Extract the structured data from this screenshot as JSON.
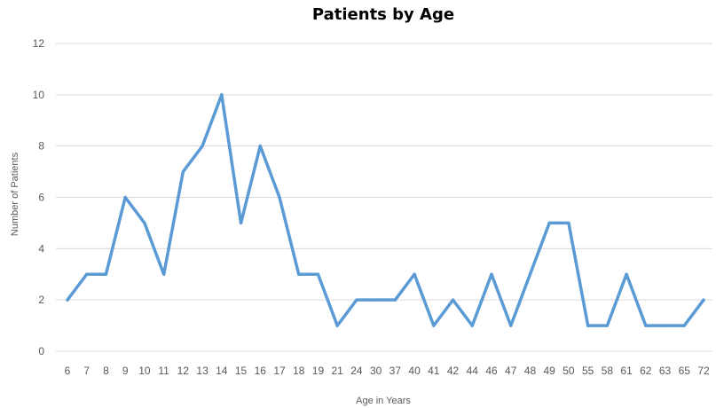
{
  "chart_data": {
    "type": "line",
    "title": "Patients by Age",
    "xlabel": "Age in Years",
    "ylabel": "Number of Patients",
    "categories": [
      "6",
      "7",
      "8",
      "9",
      "10",
      "11",
      "12",
      "13",
      "14",
      "15",
      "16",
      "17",
      "18",
      "19",
      "21",
      "24",
      "30",
      "37",
      "40",
      "41",
      "42",
      "44",
      "46",
      "47",
      "48",
      "49",
      "50",
      "55",
      "58",
      "61",
      "62",
      "63",
      "65",
      "72"
    ],
    "series": [
      {
        "values": [
          2,
          3,
          3,
          6,
          5,
          3,
          7,
          8,
          10,
          5,
          8,
          6,
          3,
          3,
          1,
          2,
          2,
          2,
          3,
          1,
          2,
          1,
          3,
          1,
          3,
          5,
          5,
          1,
          1,
          3,
          1,
          1,
          1,
          2
        ]
      }
    ],
    "yticks": [
      "0",
      "2",
      "4",
      "6",
      "8",
      "10",
      "12"
    ],
    "ylim": [
      0,
      12
    ],
    "grid": true,
    "legend": "none",
    "colors": {
      "line": "#5b9bd5",
      "grid": "#d9d9d9",
      "text": "#595959"
    }
  }
}
